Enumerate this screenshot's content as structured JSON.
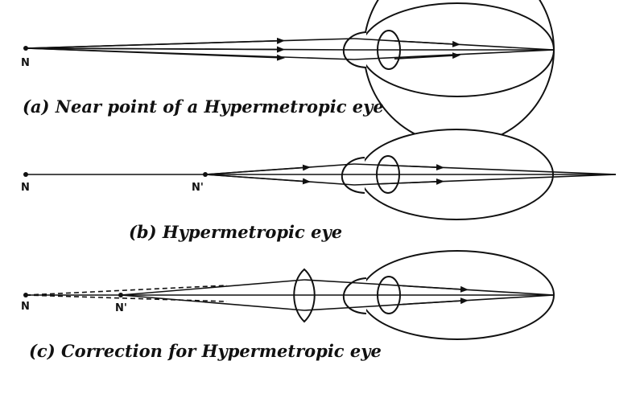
{
  "panels": [
    {
      "caption": "(a) Near point of a Hypermetropic eye",
      "labels": [
        "N"
      ]
    },
    {
      "caption": "(b) Hypermetropic eye",
      "labels": [
        "N",
        "N'"
      ]
    },
    {
      "caption": "(c) Correction for Hypermetropic eye",
      "labels": [
        "N",
        "N'"
      ]
    }
  ]
}
